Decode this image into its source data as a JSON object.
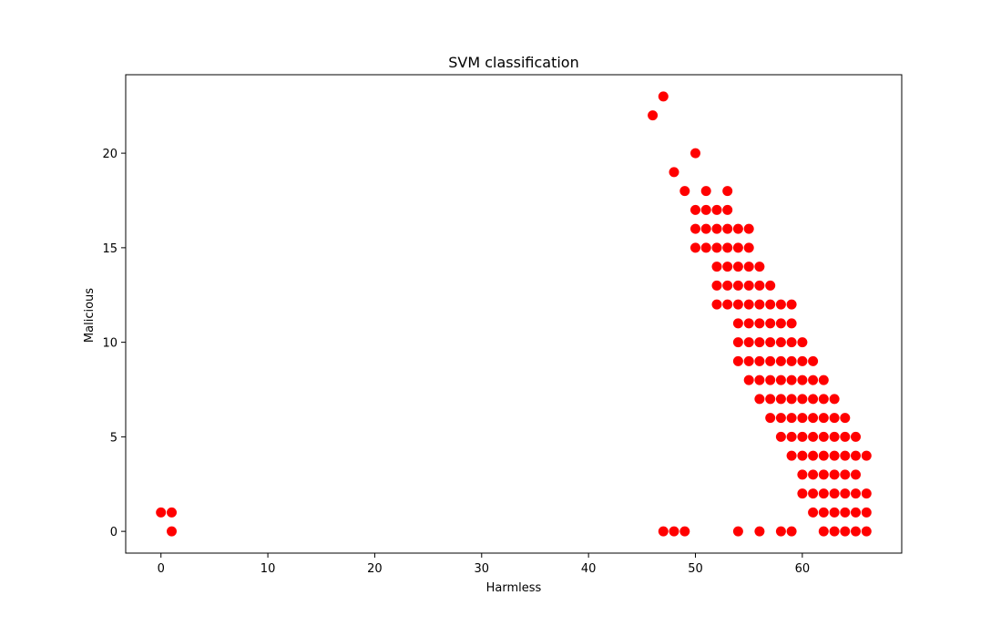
{
  "chart_data": {
    "type": "scatter",
    "title": "SVM classification",
    "xlabel": "Harmless",
    "ylabel": "Malicious",
    "xlim": [
      -3.3,
      69.3
    ],
    "ylim": [
      -1.15,
      24.15
    ],
    "xticks": [
      0,
      10,
      20,
      30,
      40,
      50,
      60
    ],
    "yticks": [
      0,
      5,
      10,
      15,
      20
    ],
    "grid": false,
    "marker_color": "#ff0000",
    "series": [
      {
        "points": [
          [
            0,
            1
          ],
          [
            1,
            1
          ],
          [
            1,
            0
          ],
          [
            46,
            22
          ],
          [
            47,
            23
          ],
          [
            48,
            19
          ],
          [
            49,
            18
          ],
          [
            50,
            20
          ],
          [
            51,
            18
          ],
          [
            53,
            18
          ],
          [
            50,
            17
          ],
          [
            51,
            17
          ],
          [
            52,
            17
          ],
          [
            53,
            17
          ],
          [
            50,
            16
          ],
          [
            51,
            16
          ],
          [
            52,
            16
          ],
          [
            53,
            16
          ],
          [
            54,
            16
          ],
          [
            55,
            16
          ],
          [
            50,
            15
          ],
          [
            51,
            15
          ],
          [
            52,
            15
          ],
          [
            53,
            15
          ],
          [
            54,
            15
          ],
          [
            55,
            15
          ],
          [
            52,
            14
          ],
          [
            53,
            14
          ],
          [
            54,
            14
          ],
          [
            55,
            14
          ],
          [
            56,
            14
          ],
          [
            52,
            13
          ],
          [
            53,
            13
          ],
          [
            54,
            13
          ],
          [
            55,
            13
          ],
          [
            56,
            13
          ],
          [
            57,
            13
          ],
          [
            52,
            12
          ],
          [
            53,
            12
          ],
          [
            54,
            12
          ],
          [
            55,
            12
          ],
          [
            56,
            12
          ],
          [
            57,
            12
          ],
          [
            58,
            12
          ],
          [
            59,
            12
          ],
          [
            54,
            11
          ],
          [
            55,
            11
          ],
          [
            56,
            11
          ],
          [
            57,
            11
          ],
          [
            58,
            11
          ],
          [
            59,
            11
          ],
          [
            54,
            10
          ],
          [
            55,
            10
          ],
          [
            56,
            10
          ],
          [
            57,
            10
          ],
          [
            58,
            10
          ],
          [
            59,
            10
          ],
          [
            60,
            10
          ],
          [
            54,
            9
          ],
          [
            55,
            9
          ],
          [
            56,
            9
          ],
          [
            57,
            9
          ],
          [
            58,
            9
          ],
          [
            59,
            9
          ],
          [
            60,
            9
          ],
          [
            61,
            9
          ],
          [
            55,
            8
          ],
          [
            56,
            8
          ],
          [
            57,
            8
          ],
          [
            58,
            8
          ],
          [
            59,
            8
          ],
          [
            60,
            8
          ],
          [
            61,
            8
          ],
          [
            62,
            8
          ],
          [
            56,
            7
          ],
          [
            57,
            7
          ],
          [
            58,
            7
          ],
          [
            59,
            7
          ],
          [
            60,
            7
          ],
          [
            61,
            7
          ],
          [
            62,
            7
          ],
          [
            63,
            7
          ],
          [
            57,
            6
          ],
          [
            58,
            6
          ],
          [
            59,
            6
          ],
          [
            60,
            6
          ],
          [
            61,
            6
          ],
          [
            62,
            6
          ],
          [
            63,
            6
          ],
          [
            64,
            6
          ],
          [
            58,
            5
          ],
          [
            59,
            5
          ],
          [
            60,
            5
          ],
          [
            61,
            5
          ],
          [
            62,
            5
          ],
          [
            63,
            5
          ],
          [
            64,
            5
          ],
          [
            65,
            5
          ],
          [
            59,
            4
          ],
          [
            60,
            4
          ],
          [
            61,
            4
          ],
          [
            62,
            4
          ],
          [
            63,
            4
          ],
          [
            64,
            4
          ],
          [
            65,
            4
          ],
          [
            66,
            4
          ],
          [
            60,
            3
          ],
          [
            61,
            3
          ],
          [
            62,
            3
          ],
          [
            63,
            3
          ],
          [
            64,
            3
          ],
          [
            65,
            3
          ],
          [
            60,
            2
          ],
          [
            61,
            2
          ],
          [
            62,
            2
          ],
          [
            63,
            2
          ],
          [
            64,
            2
          ],
          [
            65,
            2
          ],
          [
            66,
            2
          ],
          [
            61,
            1
          ],
          [
            62,
            1
          ],
          [
            63,
            1
          ],
          [
            64,
            1
          ],
          [
            65,
            1
          ],
          [
            66,
            1
          ],
          [
            47,
            0
          ],
          [
            48,
            0
          ],
          [
            49,
            0
          ],
          [
            54,
            0
          ],
          [
            56,
            0
          ],
          [
            58,
            0
          ],
          [
            59,
            0
          ],
          [
            62,
            0
          ],
          [
            63,
            0
          ],
          [
            64,
            0
          ],
          [
            65,
            0
          ],
          [
            66,
            0
          ]
        ]
      }
    ]
  }
}
